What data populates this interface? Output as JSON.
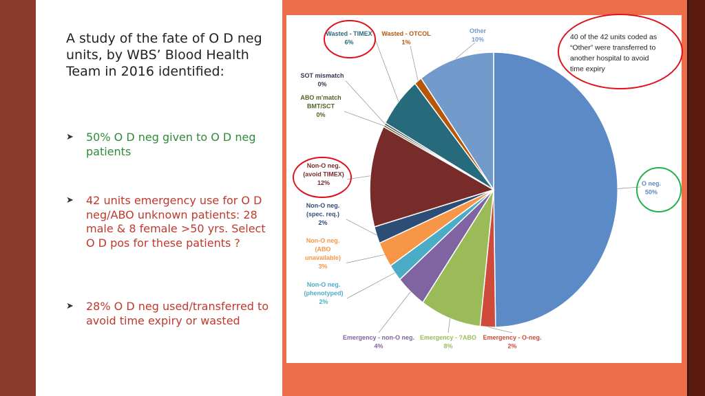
{
  "slide": {
    "intro": "A study of the fate of O D neg units, by WBS’ Blood Health Team in 2016 identified:",
    "bullets": [
      {
        "text": "50% O D neg given to O D neg patients",
        "color": "#2e8b3a"
      },
      {
        "text": "42 units emergency use for O D neg/ABO unknown patients: 28 male & 8 female >50 yrs.  Select O D pos for these patients ?",
        "color": "#c0392b"
      },
      {
        "text": "28% O D neg used/transferred to avoid time expiry or wasted",
        "color": "#c0392b"
      }
    ],
    "callout": "40 of the 42 units coded as “Other” were transferred to another hospital to avoid time expiry",
    "colors": {
      "left_band": "#8b3a2b",
      "right_panel": "#ec6e49",
      "right_band": "#5a1a0f",
      "highlight_red": "#e0101a",
      "highlight_green": "#22b14c"
    }
  },
  "chart_data": {
    "type": "pie",
    "title": "",
    "start": "12 o'clock, clockwise",
    "slices": [
      {
        "label": "O neg.",
        "value": 50,
        "pct_label": "50%",
        "color": "#5b8ac6",
        "highlight": "green"
      },
      {
        "label": "Emergency - O-neg.",
        "value": 2,
        "pct_label": "2%",
        "color": "#cf4a3a"
      },
      {
        "label": "Emergency - ?ABO",
        "value": 8,
        "pct_label": "8%",
        "color": "#9bbb59"
      },
      {
        "label": "Emergency - non-O neg.",
        "value": 4,
        "pct_label": "4%",
        "color": "#8064a2"
      },
      {
        "label": "Non-O neg. (phenotyped)",
        "value": 2,
        "pct_label": "2%",
        "color": "#4bacc6"
      },
      {
        "label": "Non-O neg. (ABO unavailable)",
        "value": 3,
        "pct_label": "3%",
        "color": "#f79646"
      },
      {
        "label": "Non-O neg. (spec. req.)",
        "value": 2,
        "pct_label": "2%",
        "color": "#2c4d75"
      },
      {
        "label": "Non-O neg. (avoid TIMEX)",
        "value": 12,
        "pct_label": "12%",
        "color": "#772c2a",
        "highlight": "red"
      },
      {
        "label": "ABO m'match BMT/SCT",
        "value": 0.25,
        "pct_label": "0%",
        "color": "#4f6228"
      },
      {
        "label": "SOT mismatch",
        "value": 0.25,
        "pct_label": "0%",
        "color": "#3f3151"
      },
      {
        "label": "Wasted - TIMEX",
        "value": 6,
        "pct_label": "6%",
        "color": "#276a7c",
        "highlight": "red"
      },
      {
        "label": "Wasted - OTCOL",
        "value": 1,
        "pct_label": "1%",
        "color": "#b65708"
      },
      {
        "label": "Other",
        "value": 10,
        "pct_label": "10%",
        "color": "#729aca"
      }
    ]
  }
}
